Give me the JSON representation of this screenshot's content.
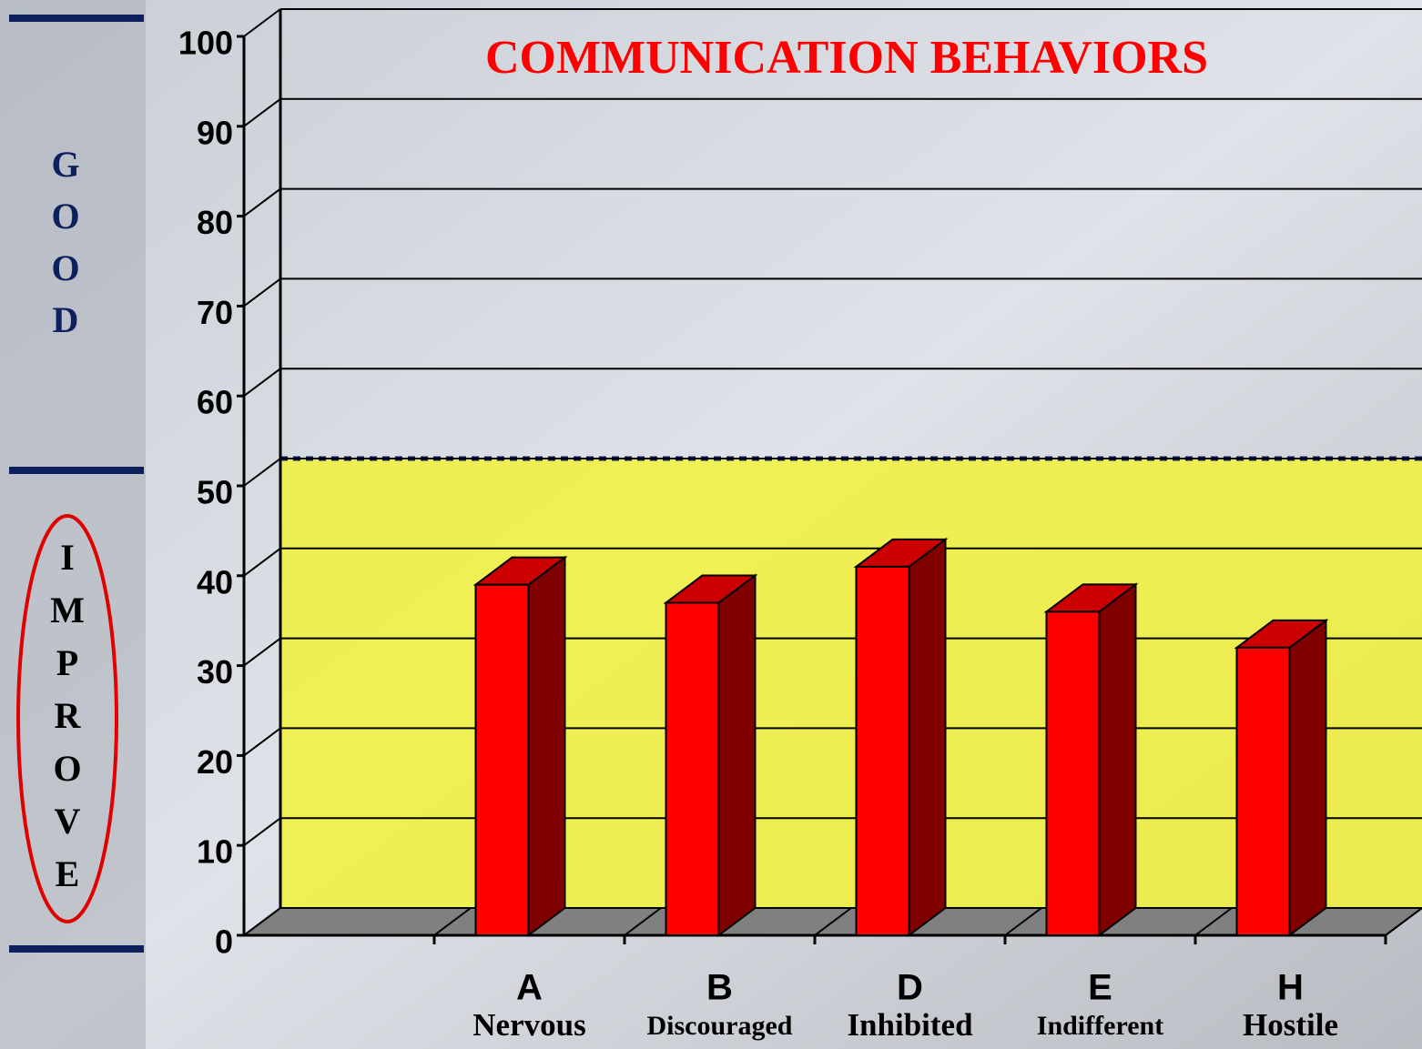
{
  "chart_data": {
    "type": "bar3d",
    "title": "COMMUNICATION BEHAVIORS",
    "categories": [
      null,
      "A",
      "B",
      "D",
      "E",
      "H"
    ],
    "category_subtitles": [
      null,
      "Nervous",
      "Discouraged",
      "Inhibited",
      "Indifferent",
      "Hostile"
    ],
    "values": [
      null,
      39,
      37,
      41,
      36,
      32
    ],
    "color": "#ff0000",
    "ylim": [
      0,
      100
    ],
    "yticks": [
      0,
      10,
      20,
      30,
      40,
      50,
      60,
      70,
      80,
      90,
      100
    ],
    "grid": true,
    "threshold": 50,
    "side_labels": {
      "good": [
        "G",
        "O",
        "O",
        "D"
      ],
      "improve": [
        "I",
        "M",
        "P",
        "R",
        "O",
        "V",
        "E"
      ]
    }
  }
}
